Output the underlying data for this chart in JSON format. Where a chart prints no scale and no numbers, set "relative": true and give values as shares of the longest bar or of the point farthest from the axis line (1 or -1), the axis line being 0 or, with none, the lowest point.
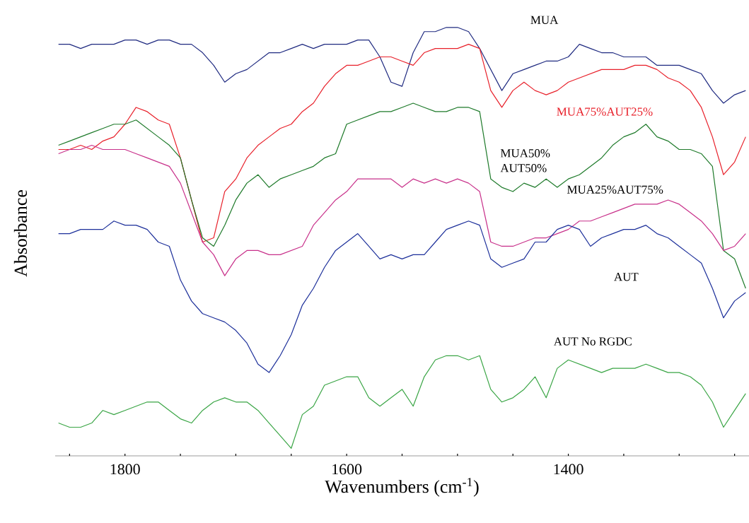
{
  "chart_data": {
    "type": "line",
    "relative": true,
    "xlabel": "Wavenumbers (cm$^{-1}$)",
    "ylabel": "Absorbance",
    "xlim": [
      1863,
      1237
    ],
    "xticks": [
      {
        "value": 1850,
        "label": null
      },
      1800,
      {
        "value": 1750,
        "label": null
      },
      {
        "value": 1700,
        "label": null
      },
      {
        "value": 1650,
        "label": null
      },
      1600,
      {
        "value": 1550,
        "label": null
      },
      {
        "value": 1500,
        "label": null
      },
      {
        "value": 1450,
        "label": null
      },
      1400,
      {
        "value": 1350,
        "label": null
      },
      {
        "value": 1300,
        "label": null
      },
      {
        "value": 1250,
        "label": null
      }
    ],
    "x": [
      1860,
      1850,
      1840,
      1830,
      1820,
      1810,
      1800,
      1790,
      1780,
      1770,
      1760,
      1750,
      1740,
      1730,
      1720,
      1710,
      1700,
      1690,
      1680,
      1670,
      1660,
      1650,
      1640,
      1630,
      1620,
      1610,
      1600,
      1590,
      1580,
      1570,
      1560,
      1550,
      1540,
      1530,
      1520,
      1510,
      1500,
      1490,
      1480,
      1470,
      1460,
      1450,
      1440,
      1430,
      1420,
      1410,
      1400,
      1390,
      1380,
      1370,
      1360,
      1350,
      1340,
      1330,
      1320,
      1310,
      1300,
      1290,
      1280,
      1270,
      1260,
      1250,
      1240
    ],
    "series": [
      {
        "name": "MUA",
        "color": "#1f2a80",
        "values": [
          0.96,
          0.96,
          0.95,
          0.96,
          0.96,
          0.96,
          0.97,
          0.97,
          0.96,
          0.97,
          0.97,
          0.96,
          0.96,
          0.94,
          0.91,
          0.87,
          0.89,
          0.9,
          0.92,
          0.94,
          0.94,
          0.95,
          0.96,
          0.95,
          0.96,
          0.96,
          0.96,
          0.97,
          0.97,
          0.93,
          0.87,
          0.86,
          0.94,
          0.99,
          0.99,
          1.0,
          1.0,
          0.99,
          0.95,
          0.9,
          0.85,
          0.89,
          0.9,
          0.91,
          0.92,
          0.92,
          0.93,
          0.96,
          0.95,
          0.94,
          0.94,
          0.93,
          0.93,
          0.93,
          0.91,
          0.91,
          0.91,
          0.9,
          0.89,
          0.85,
          0.82,
          0.84,
          0.85
        ]
      },
      {
        "name": "MUA75%AUT25%",
        "color": "#e8202a",
        "values": [
          0.71,
          0.71,
          0.72,
          0.71,
          0.73,
          0.74,
          0.77,
          0.81,
          0.8,
          0.78,
          0.77,
          0.69,
          0.59,
          0.49,
          0.5,
          0.61,
          0.64,
          0.69,
          0.72,
          0.74,
          0.76,
          0.77,
          0.8,
          0.82,
          0.86,
          0.89,
          0.91,
          0.91,
          0.92,
          0.93,
          0.93,
          0.92,
          0.91,
          0.94,
          0.95,
          0.95,
          0.95,
          0.96,
          0.95,
          0.85,
          0.81,
          0.85,
          0.87,
          0.85,
          0.84,
          0.85,
          0.87,
          0.88,
          0.89,
          0.9,
          0.9,
          0.9,
          0.91,
          0.91,
          0.9,
          0.88,
          0.87,
          0.85,
          0.81,
          0.74,
          0.65,
          0.68,
          0.74
        ]
      },
      {
        "name": "MUA50% AUT50%",
        "color": "#1e7a2a",
        "values": [
          0.72,
          0.73,
          0.74,
          0.75,
          0.76,
          0.77,
          0.77,
          0.78,
          0.76,
          0.74,
          0.72,
          0.69,
          0.59,
          0.5,
          0.48,
          0.53,
          0.59,
          0.63,
          0.65,
          0.62,
          0.64,
          0.65,
          0.66,
          0.67,
          0.69,
          0.7,
          0.77,
          0.78,
          0.79,
          0.8,
          0.8,
          0.81,
          0.82,
          0.81,
          0.8,
          0.8,
          0.81,
          0.81,
          0.8,
          0.64,
          0.62,
          0.61,
          0.63,
          0.62,
          0.64,
          0.62,
          0.64,
          0.65,
          0.67,
          0.69,
          0.72,
          0.74,
          0.75,
          0.77,
          0.74,
          0.73,
          0.71,
          0.71,
          0.7,
          0.67,
          0.47,
          0.45,
          0.38
        ]
      },
      {
        "name": "MUA25%AUT75%",
        "color": "#c8308a",
        "values": [
          0.7,
          0.71,
          0.71,
          0.72,
          0.71,
          0.71,
          0.71,
          0.7,
          0.69,
          0.68,
          0.67,
          0.63,
          0.56,
          0.49,
          0.46,
          0.41,
          0.45,
          0.47,
          0.47,
          0.46,
          0.46,
          0.47,
          0.48,
          0.53,
          0.56,
          0.59,
          0.61,
          0.64,
          0.64,
          0.64,
          0.64,
          0.62,
          0.64,
          0.63,
          0.64,
          0.63,
          0.64,
          0.63,
          0.61,
          0.49,
          0.48,
          0.48,
          0.49,
          0.5,
          0.5,
          0.51,
          0.52,
          0.54,
          0.54,
          0.55,
          0.56,
          0.57,
          0.58,
          0.58,
          0.58,
          0.59,
          0.58,
          0.56,
          0.54,
          0.51,
          0.47,
          0.48,
          0.51
        ]
      },
      {
        "name": "AUT",
        "color": "#1c2f9a",
        "values": [
          0.51,
          0.51,
          0.52,
          0.52,
          0.52,
          0.54,
          0.53,
          0.53,
          0.52,
          0.49,
          0.48,
          0.4,
          0.35,
          0.32,
          0.31,
          0.3,
          0.28,
          0.25,
          0.2,
          0.18,
          0.22,
          0.27,
          0.34,
          0.38,
          0.43,
          0.47,
          0.49,
          0.51,
          0.48,
          0.45,
          0.46,
          0.45,
          0.46,
          0.46,
          0.49,
          0.52,
          0.53,
          0.54,
          0.53,
          0.45,
          0.43,
          0.44,
          0.45,
          0.49,
          0.49,
          0.52,
          0.53,
          0.52,
          0.48,
          0.5,
          0.51,
          0.52,
          0.52,
          0.53,
          0.51,
          0.5,
          0.48,
          0.46,
          0.44,
          0.38,
          0.31,
          0.35,
          0.37
        ]
      },
      {
        "name": "AUT No RGDC",
        "color": "#3aa545",
        "values": [
          0.06,
          0.05,
          0.05,
          0.06,
          0.09,
          0.08,
          0.09,
          0.1,
          0.11,
          0.11,
          0.09,
          0.07,
          0.06,
          0.09,
          0.11,
          0.12,
          0.11,
          0.11,
          0.09,
          0.06,
          0.03,
          0.0,
          0.08,
          0.1,
          0.15,
          0.16,
          0.17,
          0.17,
          0.12,
          0.1,
          0.12,
          0.14,
          0.1,
          0.17,
          0.21,
          0.22,
          0.22,
          0.21,
          0.22,
          0.14,
          0.11,
          0.12,
          0.14,
          0.17,
          0.12,
          0.19,
          0.21,
          0.2,
          0.19,
          0.18,
          0.19,
          0.19,
          0.19,
          0.2,
          0.19,
          0.18,
          0.18,
          0.17,
          0.15,
          0.11,
          0.05,
          0.09,
          0.13
        ]
      }
    ]
  }
}
